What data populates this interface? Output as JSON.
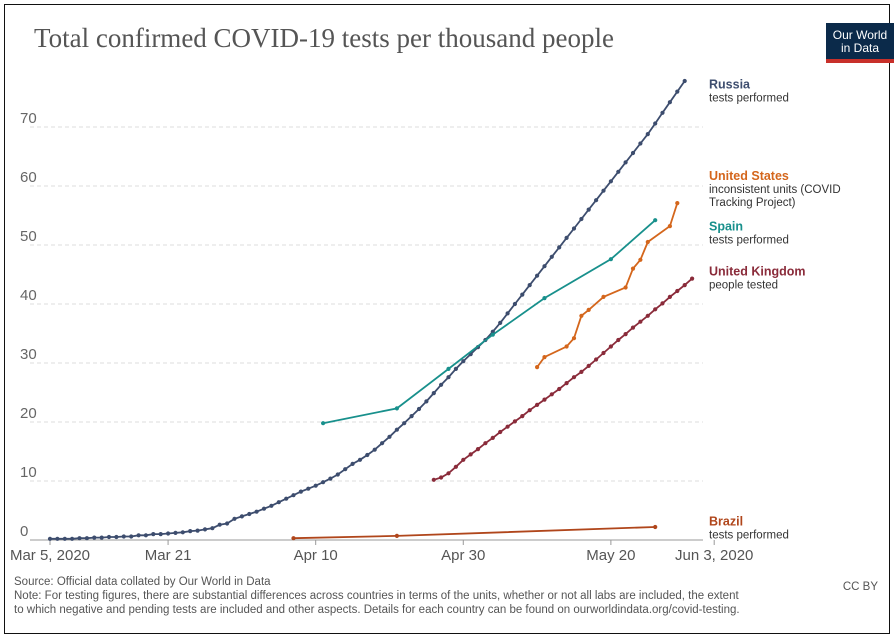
{
  "title": "Total confirmed COVID-19 tests per thousand people",
  "logo": {
    "line1": "Our World",
    "line2": "in Data",
    "bg": "#0b2a4a",
    "accent": "#c8302a"
  },
  "source": "Source: Official data collated by Our World in Data",
  "license": "CC BY",
  "note_line1": "Note: For testing figures, there are substantial differences across countries in terms of the units, whether or not all labs are included, the extent",
  "note_line2": "to which negative and pending tests are included and other aspects. Details for each country can be found on ourworldindata.org/covid-testing.",
  "chart_data": {
    "type": "line",
    "x_axis": {
      "start_date": "2020-03-05",
      "ticks": [
        {
          "label": "Mar 5, 2020",
          "day": 0
        },
        {
          "label": "Mar 21",
          "day": 16
        },
        {
          "label": "Apr 10",
          "day": 36
        },
        {
          "label": "Apr 30",
          "day": 56
        },
        {
          "label": "May 20",
          "day": 76
        },
        {
          "label": "Jun 3, 2020",
          "day": 90
        }
      ]
    },
    "y_axis": {
      "min": 0,
      "max": 80,
      "ticks": [
        0,
        10,
        20,
        30,
        40,
        50,
        60,
        70
      ],
      "grid": true
    },
    "series": [
      {
        "name": "Russia",
        "unit_label": "tests performed",
        "color": "#3d4d6e",
        "label_y": 76.5,
        "points": [
          [
            0,
            0.2
          ],
          [
            1,
            0.2
          ],
          [
            2,
            0.2
          ],
          [
            3,
            0.2
          ],
          [
            4,
            0.3
          ],
          [
            5,
            0.3
          ],
          [
            6,
            0.4
          ],
          [
            7,
            0.4
          ],
          [
            8,
            0.5
          ],
          [
            9,
            0.5
          ],
          [
            10,
            0.6
          ],
          [
            11,
            0.6
          ],
          [
            12,
            0.8
          ],
          [
            13,
            0.8
          ],
          [
            14,
            1.0
          ],
          [
            15,
            1.0
          ],
          [
            16,
            1.1
          ],
          [
            17,
            1.2
          ],
          [
            18,
            1.3
          ],
          [
            19,
            1.5
          ],
          [
            20,
            1.6
          ],
          [
            21,
            1.8
          ],
          [
            22,
            2.0
          ],
          [
            23,
            2.6
          ],
          [
            24,
            2.8
          ],
          [
            25,
            3.6
          ],
          [
            26,
            4.0
          ],
          [
            27,
            4.4
          ],
          [
            28,
            4.8
          ],
          [
            29,
            5.3
          ],
          [
            30,
            5.8
          ],
          [
            31,
            6.4
          ],
          [
            32,
            7.0
          ],
          [
            33,
            7.6
          ],
          [
            34,
            8.2
          ],
          [
            35,
            8.7
          ],
          [
            36,
            9.2
          ],
          [
            37,
            9.8
          ],
          [
            38,
            10.4
          ],
          [
            39,
            11.1
          ],
          [
            40,
            12.0
          ],
          [
            41,
            12.9
          ],
          [
            42,
            13.6
          ],
          [
            43,
            14.4
          ],
          [
            44,
            15.3
          ],
          [
            45,
            16.4
          ],
          [
            46,
            17.5
          ],
          [
            47,
            18.7
          ],
          [
            48,
            19.8
          ],
          [
            49,
            21.0
          ],
          [
            50,
            22.2
          ],
          [
            51,
            23.5
          ],
          [
            52,
            24.9
          ],
          [
            53,
            26.3
          ],
          [
            54,
            27.6
          ],
          [
            55,
            29.0
          ],
          [
            56,
            30.3
          ],
          [
            57,
            31.5
          ],
          [
            58,
            32.7
          ],
          [
            59,
            33.9
          ],
          [
            60,
            35.3
          ],
          [
            61,
            36.8
          ],
          [
            62,
            38.4
          ],
          [
            63,
            40.0
          ],
          [
            64,
            41.6
          ],
          [
            65,
            43.2
          ],
          [
            66,
            44.8
          ],
          [
            67,
            46.4
          ],
          [
            68,
            48.0
          ],
          [
            69,
            49.6
          ],
          [
            70,
            51.2
          ],
          [
            71,
            52.8
          ],
          [
            72,
            54.4
          ],
          [
            73,
            56.0
          ],
          [
            74,
            57.6
          ],
          [
            75,
            59.2
          ],
          [
            76,
            60.8
          ],
          [
            77,
            62.4
          ],
          [
            78,
            64.0
          ],
          [
            79,
            65.6
          ],
          [
            80,
            67.2
          ],
          [
            81,
            68.8
          ],
          [
            82,
            70.6
          ],
          [
            83,
            72.4
          ],
          [
            84,
            74.2
          ],
          [
            85,
            76.0
          ],
          [
            86,
            77.8
          ]
        ]
      },
      {
        "name": "United States",
        "unit_label": "inconsistent units (COVID Tracking Project)",
        "color": "#d4661c",
        "label_y": 61,
        "points": [
          [
            66,
            29.3
          ],
          [
            67,
            31.0
          ],
          [
            70,
            32.8
          ],
          [
            71,
            34.2
          ],
          [
            72,
            38.0
          ],
          [
            73,
            39.0
          ],
          [
            75,
            41.2
          ],
          [
            78,
            42.8
          ],
          [
            79,
            46.0
          ],
          [
            80,
            47.5
          ],
          [
            81,
            50.5
          ],
          [
            84,
            53.2
          ],
          [
            85,
            57.1
          ]
        ]
      },
      {
        "name": "Spain",
        "unit_label": "tests performed",
        "color": "#18908c",
        "label_y": 52.5,
        "points": [
          [
            37,
            19.8
          ],
          [
            47,
            22.3
          ],
          [
            54,
            29.0
          ],
          [
            60,
            34.8
          ],
          [
            67,
            41.0
          ],
          [
            76,
            47.6
          ],
          [
            82,
            54.2
          ]
        ]
      },
      {
        "name": "United Kingdom",
        "unit_label": "people tested",
        "color": "#8a2b3a",
        "label_y": 44.8,
        "points": [
          [
            52,
            10.2
          ],
          [
            53,
            10.6
          ],
          [
            54,
            11.3
          ],
          [
            55,
            12.4
          ],
          [
            56,
            13.6
          ],
          [
            57,
            14.5
          ],
          [
            58,
            15.4
          ],
          [
            59,
            16.4
          ],
          [
            60,
            17.3
          ],
          [
            61,
            18.3
          ],
          [
            62,
            19.2
          ],
          [
            63,
            20.1
          ],
          [
            64,
            21.0
          ],
          [
            65,
            22.0
          ],
          [
            66,
            22.9
          ],
          [
            67,
            23.8
          ],
          [
            68,
            24.7
          ],
          [
            69,
            25.6
          ],
          [
            70,
            26.6
          ],
          [
            71,
            27.6
          ],
          [
            72,
            28.5
          ],
          [
            73,
            29.5
          ],
          [
            74,
            30.6
          ],
          [
            75,
            31.7
          ],
          [
            76,
            32.8
          ],
          [
            77,
            33.9
          ],
          [
            78,
            34.9
          ],
          [
            79,
            36.0
          ],
          [
            80,
            37.0
          ],
          [
            81,
            38.0
          ],
          [
            82,
            39.1
          ],
          [
            83,
            40.1
          ],
          [
            84,
            41.2
          ],
          [
            85,
            42.2
          ],
          [
            86,
            43.2
          ],
          [
            87,
            44.3
          ]
        ]
      },
      {
        "name": "Brazil",
        "unit_label": "tests performed",
        "color": "#b0461b",
        "label_y": 2.5,
        "points": [
          [
            33,
            0.3
          ],
          [
            47,
            0.7
          ],
          [
            82,
            2.2
          ]
        ]
      }
    ]
  }
}
